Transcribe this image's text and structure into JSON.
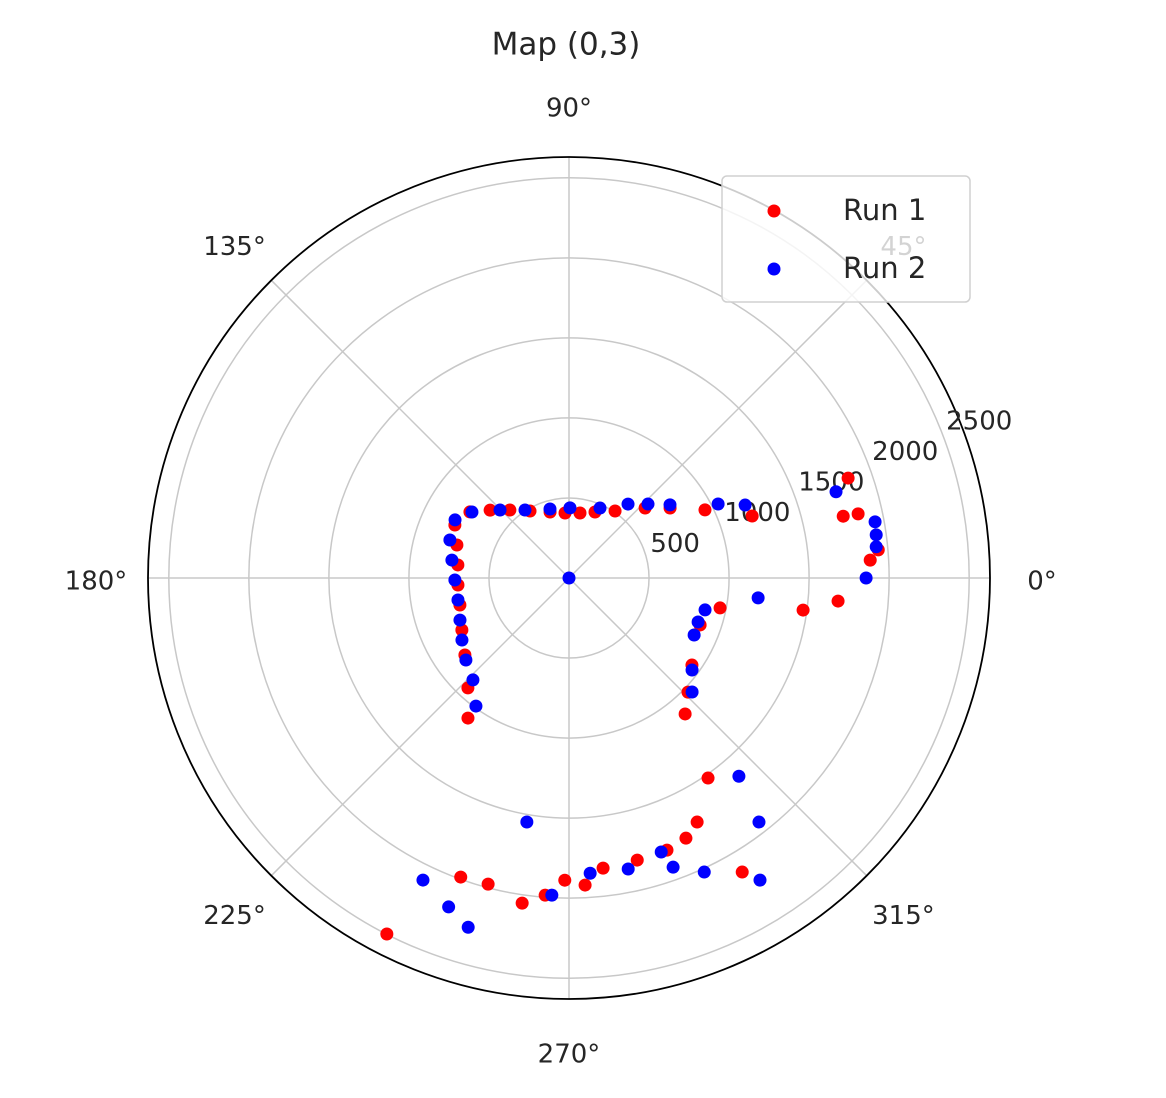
{
  "chart_data": {
    "type": "polar-scatter",
    "title": "Map (0,3)",
    "xlim": [
      0,
      360
    ],
    "xticks": [
      {
        "value": 0,
        "label": "0°"
      },
      {
        "value": 45,
        "label": "45°"
      },
      {
        "value": 90,
        "label": "90°"
      },
      {
        "value": 135,
        "label": "135°"
      },
      {
        "value": 180,
        "label": "180°"
      },
      {
        "value": 225,
        "label": "225°"
      },
      {
        "value": 270,
        "label": "270°"
      },
      {
        "value": 315,
        "label": "315°"
      }
    ],
    "ylim": [
      0,
      2630
    ],
    "yticks": [
      500,
      1000,
      1500,
      2000,
      2500
    ],
    "grid": true,
    "legend": "upper right",
    "series": [
      {
        "name": "Run 1",
        "color": "#ff0000",
        "x": [
          146.3,
          139.3,
          131,
          120.2,
          106,
          93.5,
          80.4,
          68.5,
          55.5,
          42.6,
          34.7,
          26.6,
          18.7,
          19.7,
          12.7,
          12.5,
          5.2,
          3.4,
          355.1,
          352.2,
          348.8,
          340.3,
          324.7,
          316.2,
          310.5,
          304.8,
          297.7,
          294.2,
          289.8,
          283.6,
          276.7,
          273,
          269.2,
          265.7,
          261.8,
          255.2,
          250.1,
          242.9,
          300.5,
          155.1,
          163.6,
          173.3,
          183.6,
          193.9,
          205.9,
          216.5,
          227.4,
          234.2
        ],
        "values": [
          744,
          650,
          563,
          484,
          429,
          407,
          412,
          443,
          508,
          646,
          768,
          950,
          1208,
          1852,
          1756,
          1850,
          1940,
          1885,
          1687,
          1476,
          962,
          870,
          941,
          1030,
          1117,
          1522,
          1722,
          1782,
          1807,
          1813,
          1825,
          1921,
          1888,
          1987,
          2052,
          1978,
          1987,
          2498,
          2132,
          786,
          730,
          699,
          695,
          702,
          744,
          809,
          933,
          1079
        ]
      },
      {
        "name": "Run 2",
        "color": "#0000ff",
        "x": [
          153,
          145.8,
          135.4,
          122.9,
          105.4,
          89.2,
          66.1,
          51.4,
          43.1,
          35.9,
          26.4,
          22.5,
          17.9,
          10.4,
          8,
          5.8,
          0,
          0,
          354,
          346.8,
          341.2,
          335.5,
          323.2,
          317.2,
          310.6,
          307.9,
          302.3,
          294.7,
          289.8,
          288.6,
          281.5,
          274.1,
          266.9,
          260.2,
          244.2,
          249.9,
          253.9,
          162.3,
          171.3,
          181,
          191.2,
          201.1,
          210.1,
          218.5,
          226.7,
          234
        ],
        "values": [
          799,
          733,
          605,
          506,
          447,
          438,
          478,
          591,
          676,
          779,
          1040,
          1191,
          1753,
          1944,
          1938,
          1929,
          1856,
          0,
          1188,
          873,
          852,
          859,
          960,
          1048,
          1631,
          1932,
          2233,
          2022,
          1920,
          1806,
          1855,
          1849,
          1984,
          1547,
          2096,
          2188,
          2271,
          781,
          740,
          713,
          707,
          730,
          773,
          823,
          875,
          989
        ]
      }
    ]
  }
}
